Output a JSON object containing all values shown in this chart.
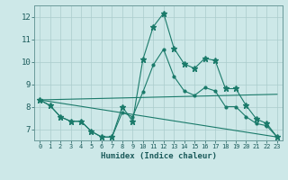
{
  "title": "",
  "xlabel": "Humidex (Indice chaleur)",
  "xlim": [
    -0.5,
    23.5
  ],
  "ylim": [
    6.5,
    12.5
  ],
  "yticks": [
    7,
    8,
    9,
    10,
    11,
    12
  ],
  "xticks": [
    0,
    1,
    2,
    3,
    4,
    5,
    6,
    7,
    8,
    9,
    10,
    11,
    12,
    13,
    14,
    15,
    16,
    17,
    18,
    19,
    20,
    21,
    22,
    23
  ],
  "bg_color": "#cde8e8",
  "line_color": "#1a7a6a",
  "grid_color": "#aacccc",
  "line1": {
    "x": [
      0,
      1,
      2,
      3,
      4,
      5,
      6,
      7,
      8,
      9,
      10,
      11,
      12,
      13,
      14,
      15,
      16,
      17,
      18,
      19,
      20,
      21,
      22,
      23
    ],
    "y": [
      8.3,
      8.05,
      7.55,
      7.35,
      7.35,
      6.9,
      6.65,
      6.65,
      8.0,
      7.35,
      10.1,
      11.55,
      12.15,
      10.6,
      9.9,
      9.7,
      10.15,
      10.05,
      8.8,
      8.8,
      8.05,
      7.45,
      7.25,
      6.65
    ]
  },
  "line2": {
    "x": [
      0,
      1,
      2,
      3,
      4,
      5,
      6,
      7,
      8,
      9,
      10,
      11,
      12,
      13,
      14,
      15,
      16,
      17,
      18,
      19,
      20,
      21,
      22,
      23
    ],
    "y": [
      8.3,
      8.05,
      7.55,
      7.35,
      7.35,
      6.9,
      6.65,
      6.65,
      7.75,
      7.55,
      8.65,
      9.85,
      10.55,
      9.35,
      8.7,
      8.5,
      8.85,
      8.7,
      8.0,
      8.0,
      7.55,
      7.25,
      7.15,
      6.65
    ]
  },
  "line3": {
    "x": [
      0,
      23
    ],
    "y": [
      8.3,
      6.65
    ]
  },
  "line4": {
    "x": [
      0,
      23
    ],
    "y": [
      8.3,
      8.55
    ]
  }
}
